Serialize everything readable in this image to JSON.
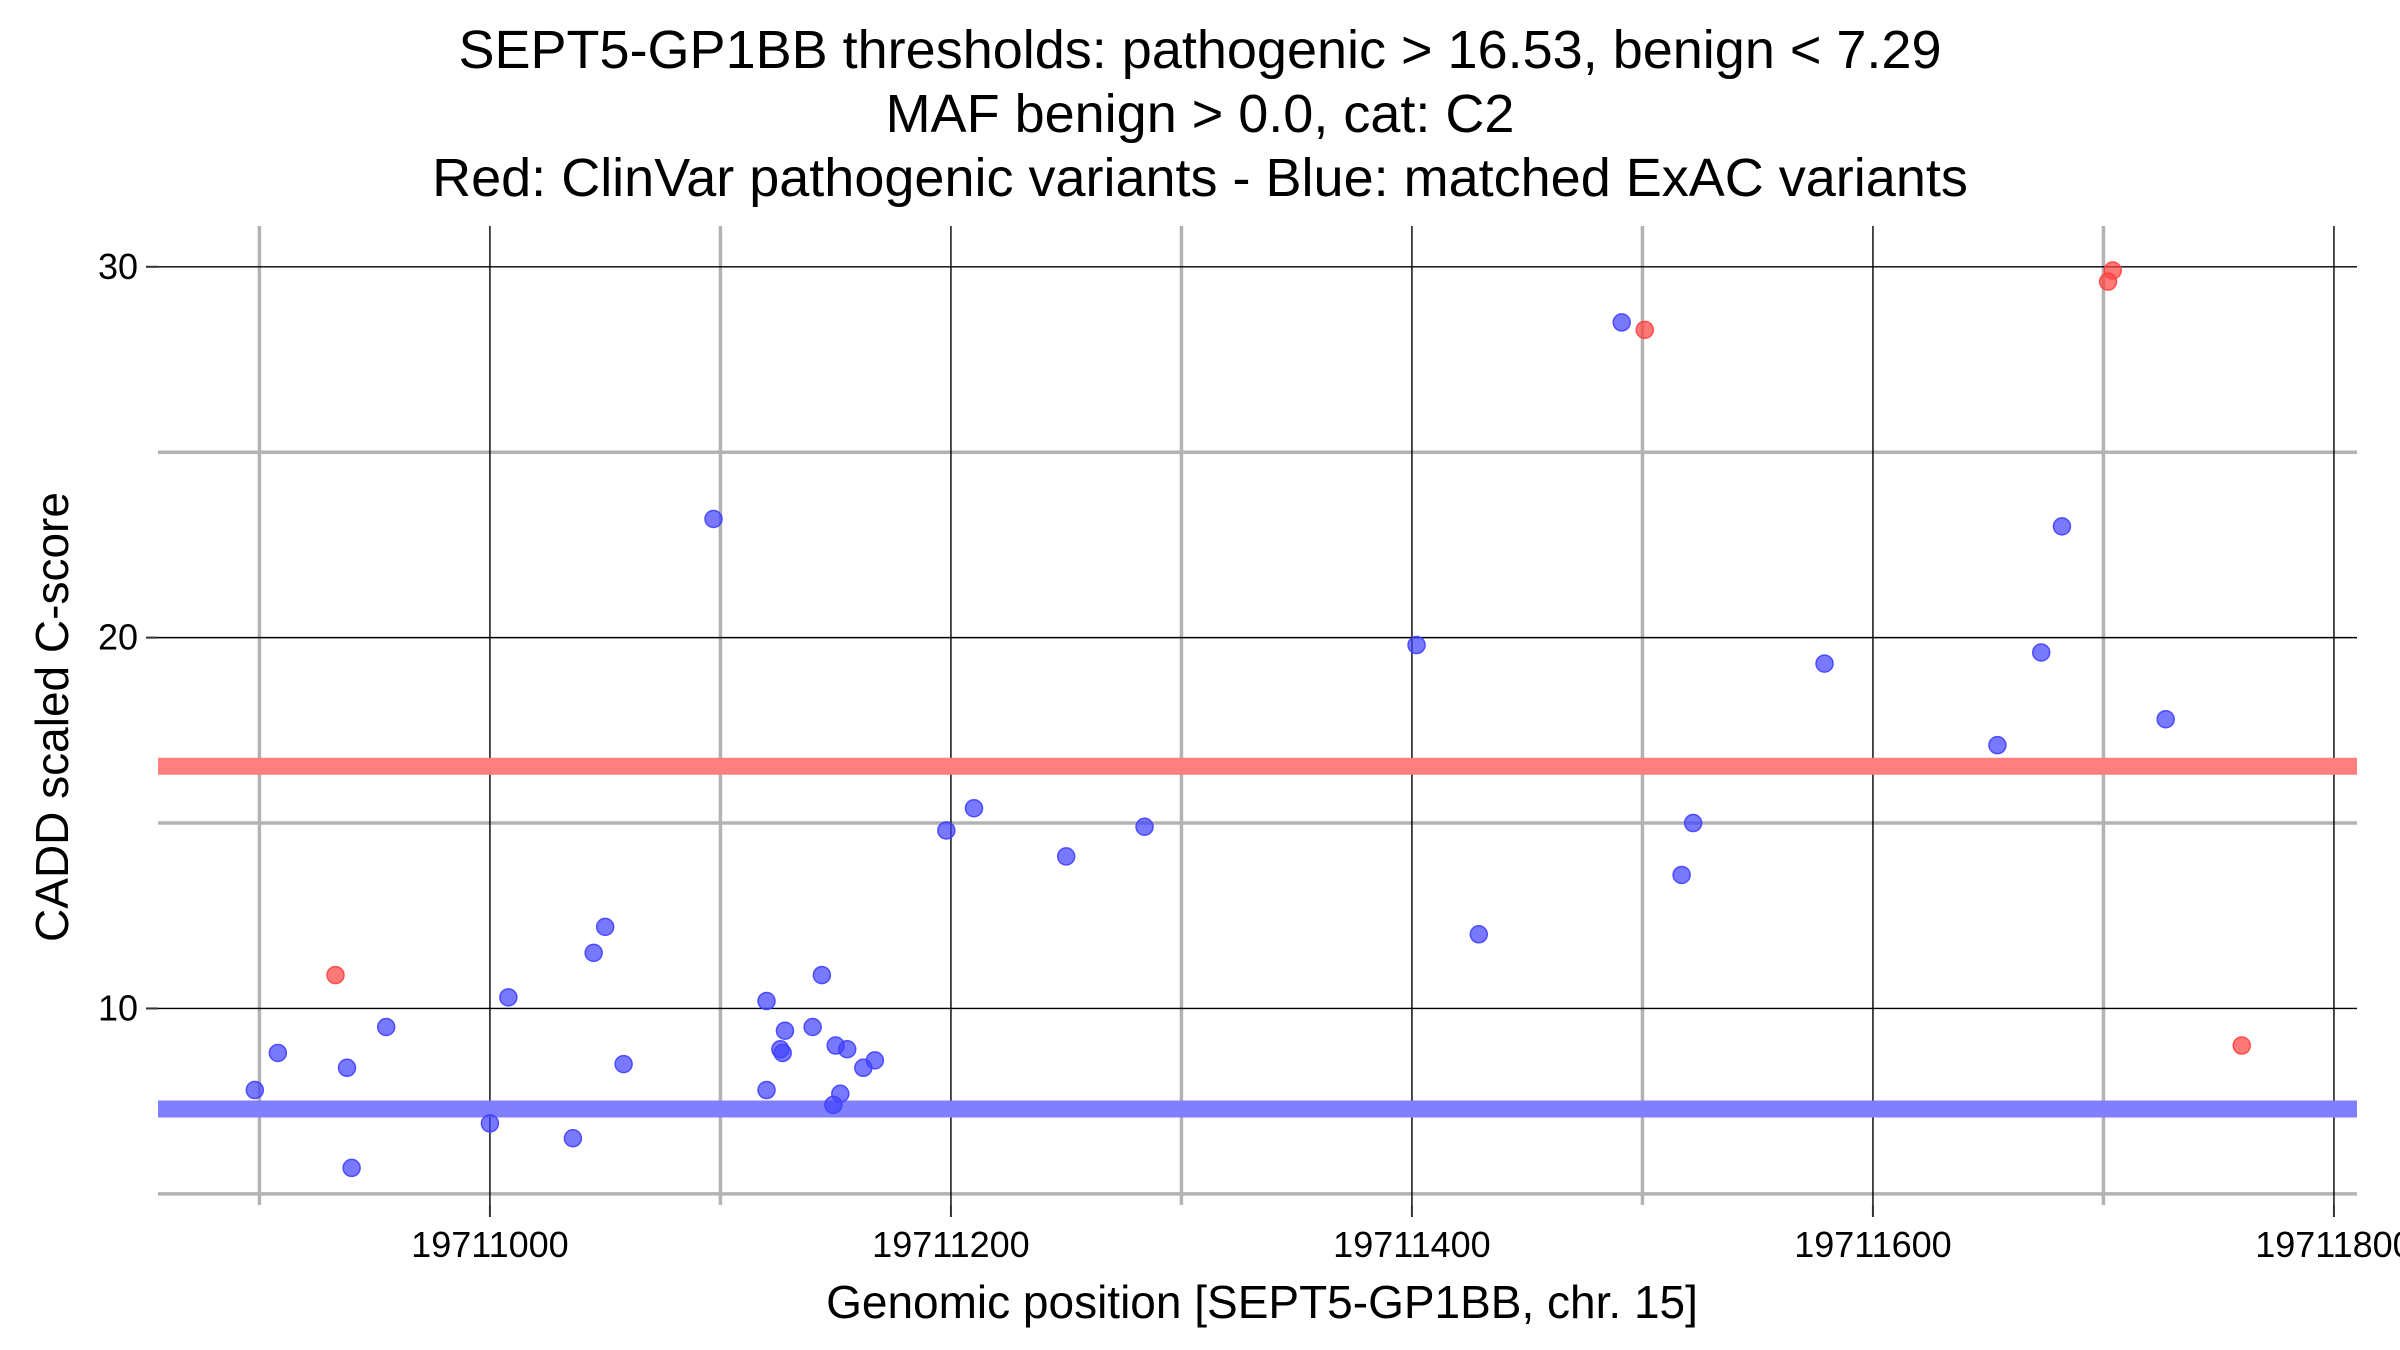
{
  "chart_data": {
    "type": "scatter",
    "title_lines": [
      "SEPT5-GP1BB thresholds: pathogenic > 16.53, benign < 7.29",
      "MAF benign > 0.0, cat: C2",
      "Red: ClinVar pathogenic variants - Blue: matched ExAC variants"
    ],
    "xlabel": "Genomic position [SEPT5-GP1BB, chr. 15]",
    "ylabel": "CADD scaled C-score",
    "xlim": [
      19710856,
      19711810
    ],
    "ylim": [
      4.7,
      31.1
    ],
    "x_ticks": [
      19711000,
      19711200,
      19711400,
      19711600,
      19711800
    ],
    "x_tick_labels": [
      "19711000",
      "19711200",
      "19711400",
      "19711600",
      "19711800"
    ],
    "y_ticks": [
      10,
      20,
      30
    ],
    "y_tick_labels": [
      "10",
      "20",
      "30"
    ],
    "x_minor_gridlines": [
      19710900,
      19711100,
      19711300,
      19711500,
      19711700
    ],
    "y_minor_gridlines": [
      5,
      15,
      25
    ],
    "grid": true,
    "thresholds": [
      {
        "name": "pathogenic",
        "value": 16.53,
        "color": "#ff7f7f"
      },
      {
        "name": "benign",
        "value": 7.29,
        "color": "#7f7fff"
      }
    ],
    "series": [
      {
        "color": "#ff4040",
        "points": [
          [
            19710933,
            10.9
          ],
          [
            19711501,
            28.3
          ],
          [
            19711702,
            29.6
          ],
          [
            19711704,
            29.9
          ],
          [
            19711760,
            9.0
          ]
        ]
      },
      {
        "color": "#4040ff",
        "points": [
          [
            19710898,
            7.8
          ],
          [
            19710908,
            8.8
          ],
          [
            19710938,
            8.4
          ],
          [
            19710940,
            5.7
          ],
          [
            19710955,
            9.5
          ],
          [
            19711000,
            6.9
          ],
          [
            19711008,
            10.3
          ],
          [
            19711036,
            6.5
          ],
          [
            19711045,
            11.5
          ],
          [
            19711050,
            12.2
          ],
          [
            19711058,
            8.5
          ],
          [
            19711097,
            23.2
          ],
          [
            19711120,
            10.2
          ],
          [
            19711120,
            7.8
          ],
          [
            19711126,
            8.9
          ],
          [
            19711127,
            8.8
          ],
          [
            19711128,
            9.4
          ],
          [
            19711140,
            9.5
          ],
          [
            19711144,
            10.9
          ],
          [
            19711149,
            7.4
          ],
          [
            19711150,
            9.0
          ],
          [
            19711152,
            7.7
          ],
          [
            19711155,
            8.9
          ],
          [
            19711162,
            8.4
          ],
          [
            19711167,
            8.6
          ],
          [
            19711198,
            14.8
          ],
          [
            19711210,
            15.4
          ],
          [
            19711250,
            14.1
          ],
          [
            19711284,
            14.9
          ],
          [
            19711402,
            19.8
          ],
          [
            19711429,
            12.0
          ],
          [
            19711491,
            28.5
          ],
          [
            19711517,
            13.6
          ],
          [
            19711522,
            15.0
          ],
          [
            19711579,
            19.3
          ],
          [
            19711654,
            17.1
          ],
          [
            19711673,
            19.6
          ],
          [
            19711682,
            23.0
          ],
          [
            19711727,
            17.8
          ]
        ]
      }
    ]
  }
}
